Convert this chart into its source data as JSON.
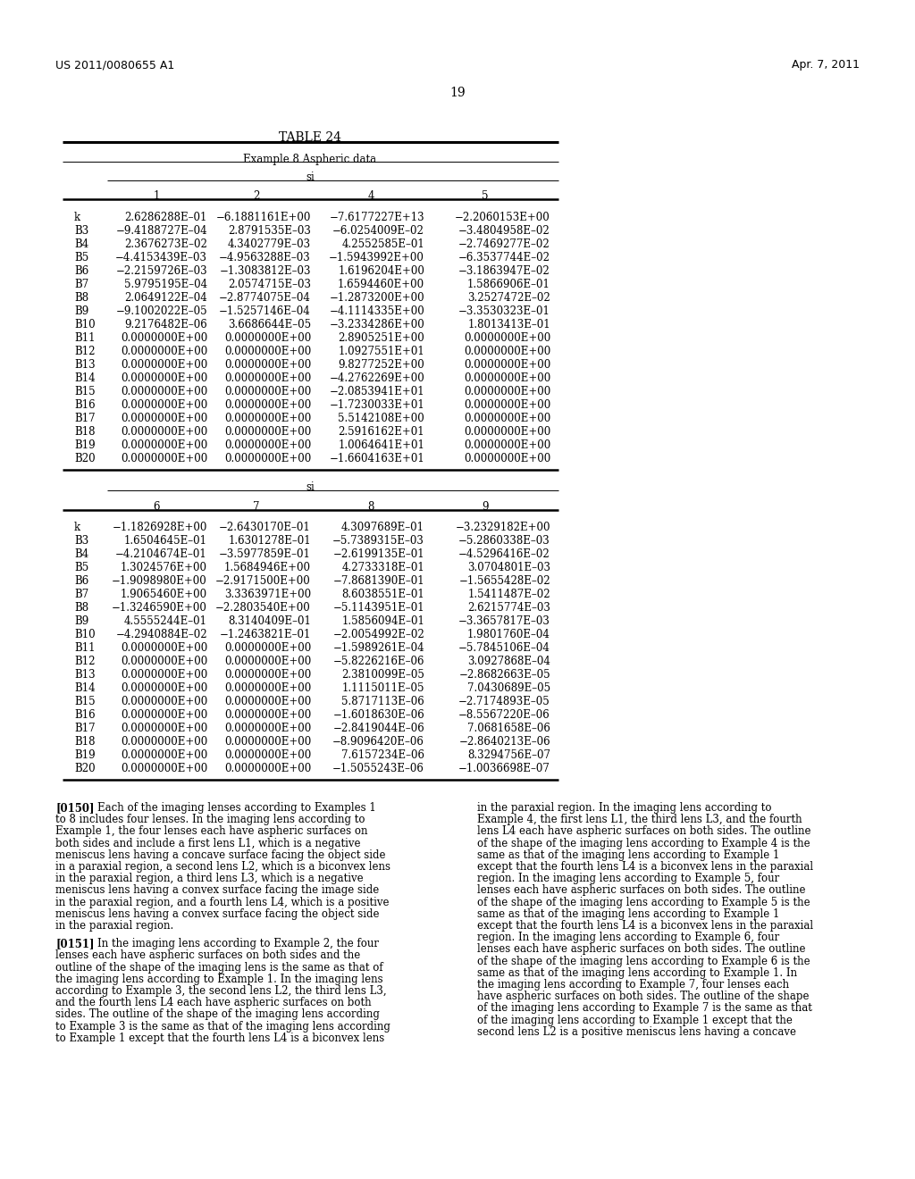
{
  "header_left": "US 2011/0080655 A1",
  "header_right": "Apr. 7, 2011",
  "page_number": "19",
  "table_title": "TABLE 24",
  "table_subtitle": "Example 8 Aspheric data",
  "table1_cols": [
    "1",
    "2",
    "4",
    "5"
  ],
  "table1_rows": [
    [
      "k",
      "2.6286288E–01",
      "−6.1881161E+00",
      "−7.6177227E+13",
      "−2.2060153E+00"
    ],
    [
      "B3",
      "−9.4188727E–04",
      "2.8791535E–03",
      "−6.0254009E–02",
      "−3.4804958E–02"
    ],
    [
      "B4",
      "2.3676273E–02",
      "4.3402779E–03",
      "4.2552585E–01",
      "−2.7469277E–02"
    ],
    [
      "B5",
      "−4.4153439E–03",
      "−4.9563288E–03",
      "−1.5943992E+00",
      "−6.3537744E–02"
    ],
    [
      "B6",
      "−2.2159726E–03",
      "−1.3083812E–03",
      "1.6196204E+00",
      "−3.1863947E–02"
    ],
    [
      "B7",
      "5.9795195E–04",
      "2.0574715E–03",
      "1.6594460E+00",
      "1.5866906E–01"
    ],
    [
      "B8",
      "2.0649122E–04",
      "−2.8774075E–04",
      "−1.2873200E+00",
      "3.2527472E–02"
    ],
    [
      "B9",
      "−9.1002022E–05",
      "−1.5257146E–04",
      "−4.1114335E+00",
      "−3.3530323E–01"
    ],
    [
      "B10",
      "9.2176482E–06",
      "3.6686644E–05",
      "−3.2334286E+00",
      "1.8013413E–01"
    ],
    [
      "B11",
      "0.0000000E+00",
      "0.0000000E+00",
      "2.8905251E+00",
      "0.0000000E+00"
    ],
    [
      "B12",
      "0.0000000E+00",
      "0.0000000E+00",
      "1.0927551E+01",
      "0.0000000E+00"
    ],
    [
      "B13",
      "0.0000000E+00",
      "0.0000000E+00",
      "9.8277252E+00",
      "0.0000000E+00"
    ],
    [
      "B14",
      "0.0000000E+00",
      "0.0000000E+00",
      "−4.2762269E+00",
      "0.0000000E+00"
    ],
    [
      "B15",
      "0.0000000E+00",
      "0.0000000E+00",
      "−2.0853941E+01",
      "0.0000000E+00"
    ],
    [
      "B16",
      "0.0000000E+00",
      "0.0000000E+00",
      "−1.7230033E+01",
      "0.0000000E+00"
    ],
    [
      "B17",
      "0.0000000E+00",
      "0.0000000E+00",
      "5.5142108E+00",
      "0.0000000E+00"
    ],
    [
      "B18",
      "0.0000000E+00",
      "0.0000000E+00",
      "2.5916162E+01",
      "0.0000000E+00"
    ],
    [
      "B19",
      "0.0000000E+00",
      "0.0000000E+00",
      "1.0064641E+01",
      "0.0000000E+00"
    ],
    [
      "B20",
      "0.0000000E+00",
      "0.0000000E+00",
      "−1.6604163E+01",
      "0.0000000E+00"
    ]
  ],
  "table2_cols": [
    "6",
    "7",
    "8",
    "9"
  ],
  "table2_rows": [
    [
      "k",
      "−1.1826928E+00",
      "−2.6430170E–01",
      "4.3097689E–01",
      "−3.2329182E+00"
    ],
    [
      "B3",
      "1.6504645E–01",
      "1.6301278E–01",
      "−5.7389315E–03",
      "−5.2860338E–03"
    ],
    [
      "B4",
      "−4.2104674E–01",
      "−3.5977859E–01",
      "−2.6199135E–01",
      "−4.5296416E–02"
    ],
    [
      "B5",
      "1.3024576E+00",
      "1.5684946E+00",
      "4.2733318E–01",
      "3.0704801E–03"
    ],
    [
      "B6",
      "−1.9098980E+00",
      "−2.9171500E+00",
      "−7.8681390E–01",
      "−1.5655428E–02"
    ],
    [
      "B7",
      "1.9065460E+00",
      "3.3363971E+00",
      "8.6038551E–01",
      "1.5411487E–02"
    ],
    [
      "B8",
      "−1.3246590E+00",
      "−2.2803540E+00",
      "−5.1143951E–01",
      "2.6215774E–03"
    ],
    [
      "B9",
      "4.5555244E–01",
      "8.3140409E–01",
      "1.5856094E–01",
      "−3.3657817E–03"
    ],
    [
      "B10",
      "−4.2940884E–02",
      "−1.2463821E–01",
      "−2.0054992E–02",
      "1.9801760E–04"
    ],
    [
      "B11",
      "0.0000000E+00",
      "0.0000000E+00",
      "−1.5989261E–04",
      "−5.7845106E–04"
    ],
    [
      "B12",
      "0.0000000E+00",
      "0.0000000E+00",
      "−5.8226216E–06",
      "3.0927868E–04"
    ],
    [
      "B13",
      "0.0000000E+00",
      "0.0000000E+00",
      "2.3810099E–05",
      "−2.8682663E–05"
    ],
    [
      "B14",
      "0.0000000E+00",
      "0.0000000E+00",
      "1.1115011E–05",
      "7.0430689E–05"
    ],
    [
      "B15",
      "0.0000000E+00",
      "0.0000000E+00",
      "5.8717113E–06",
      "−2.7174893E–05"
    ],
    [
      "B16",
      "0.0000000E+00",
      "0.0000000E+00",
      "−1.6018630E–06",
      "−8.5567220E–06"
    ],
    [
      "B17",
      "0.0000000E+00",
      "0.0000000E+00",
      "−2.8419044E–06",
      "7.0681658E–06"
    ],
    [
      "B18",
      "0.0000000E+00",
      "0.0000000E+00",
      "−8.9096420E–06",
      "−2.8640213E–06"
    ],
    [
      "B19",
      "0.0000000E+00",
      "0.0000000E+00",
      "7.6157234E–06",
      "8.3294756E–07"
    ],
    [
      "B20",
      "0.0000000E+00",
      "0.0000000E+00",
      "−1.5055243E–06",
      "−1.0036698E–07"
    ]
  ],
  "body_left_para1_label": "[0150]",
  "body_left_para1_lines": [
    "Each of the imaging lenses according to Examples 1",
    "to 8 includes four lenses. In the imaging lens according to",
    "Example 1, the four lenses each have aspheric surfaces on",
    "both sides and include a first lens L1, which is a negative",
    "meniscus lens having a concave surface facing the object side",
    "in a paraxial region, a second lens L2, which is a biconvex lens",
    "in the paraxial region, a third lens L3, which is a negative",
    "meniscus lens having a convex surface facing the image side",
    "in the paraxial region, and a fourth lens L4, which is a positive",
    "meniscus lens having a convex surface facing the object side",
    "in the paraxial region."
  ],
  "body_left_para2_label": "[0151]",
  "body_left_para2_lines": [
    "In the imaging lens according to Example 2, the four",
    "lenses each have aspheric surfaces on both sides and the",
    "outline of the shape of the imaging lens is the same as that of",
    "the imaging lens according to Example 1. In the imaging lens",
    "according to Example 3, the second lens L2, the third lens L3,",
    "and the fourth lens L4 each have aspheric surfaces on both",
    "sides. The outline of the shape of the imaging lens according",
    "to Example 3 is the same as that of the imaging lens according",
    "to Example 1 except that the fourth lens L4 is a biconvex lens"
  ],
  "body_right_lines": [
    "in the paraxial region. In the imaging lens according to",
    "Example 4, the first lens L1, the third lens L3, and the fourth",
    "lens L4 each have aspheric surfaces on both sides. The outline",
    "of the shape of the imaging lens according to Example 4 is the",
    "same as that of the imaging lens according to Example 1",
    "except that the fourth lens L4 is a biconvex lens in the paraxial",
    "region. In the imaging lens according to Example 5, four",
    "lenses each have aspheric surfaces on both sides. The outline",
    "of the shape of the imaging lens according to Example 5 is the",
    "same as that of the imaging lens according to Example 1",
    "except that the fourth lens L4 is a biconvex lens in the paraxial",
    "region. In the imaging lens according to Example 6, four",
    "lenses each have aspheric surfaces on both sides. The outline",
    "of the shape of the imaging lens according to Example 6 is the",
    "same as that of the imaging lens according to Example 1. In",
    "the imaging lens according to Example 7, four lenses each",
    "have aspheric surfaces on both sides. The outline of the shape",
    "of the imaging lens according to Example 7 is the same as that",
    "of the imaging lens according to Example 1 except that the",
    "second lens L2 is a positive meniscus lens having a concave"
  ]
}
